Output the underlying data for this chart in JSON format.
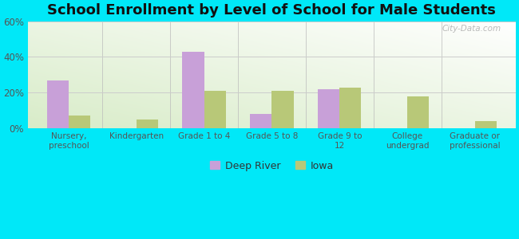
{
  "title": "School Enrollment by Level of School for Male Students",
  "categories": [
    "Nursery,\npreschool",
    "Kindergarten",
    "Grade 1 to 4",
    "Grade 5 to 8",
    "Grade 9 to\n12",
    "College\nundergrad",
    "Graduate or\nprofessional"
  ],
  "deep_river": [
    27,
    0,
    43,
    8,
    22,
    0,
    0
  ],
  "iowa": [
    7,
    5,
    21,
    21,
    23,
    18,
    4
  ],
  "deep_river_color": "#c8a0d8",
  "iowa_color": "#b8c878",
  "background_color": "#00e8f8",
  "plot_bg_top_left": "#d8ecc8",
  "plot_bg_top_right": "#ffffff",
  "plot_bg_bottom": "#d8ecc8",
  "ylim": [
    0,
    60
  ],
  "yticks": [
    0,
    20,
    40,
    60
  ],
  "ytick_labels": [
    "0%",
    "20%",
    "40%",
    "60%"
  ],
  "title_fontsize": 13,
  "legend_labels": [
    "Deep River",
    "Iowa"
  ],
  "bar_width": 0.32,
  "watermark": "City-Data.com",
  "grid_color": "#cccccc",
  "tick_color": "#555555"
}
